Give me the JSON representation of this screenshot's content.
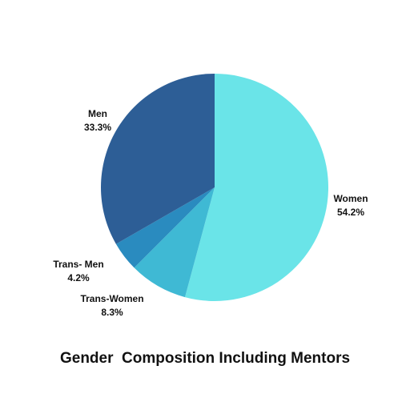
{
  "chart_data": {
    "type": "pie",
    "title": "Gender  Composition Including Mentors",
    "slices": [
      {
        "name": "Women",
        "value": 54.2,
        "label": "54.2%",
        "color": "#6ae4e8"
      },
      {
        "name": "Trans-Women",
        "value": 8.3,
        "label": "8.3%",
        "color": "#3fb9d4"
      },
      {
        "name": "Trans- Men",
        "value": 4.2,
        "label": "4.2%",
        "color": "#2a8bbf"
      },
      {
        "name": "Men",
        "value": 33.3,
        "label": "33.3%",
        "color": "#2d5e96"
      }
    ],
    "start_angle": "12 o'clock",
    "direction": "clockwise",
    "legend": "none"
  }
}
